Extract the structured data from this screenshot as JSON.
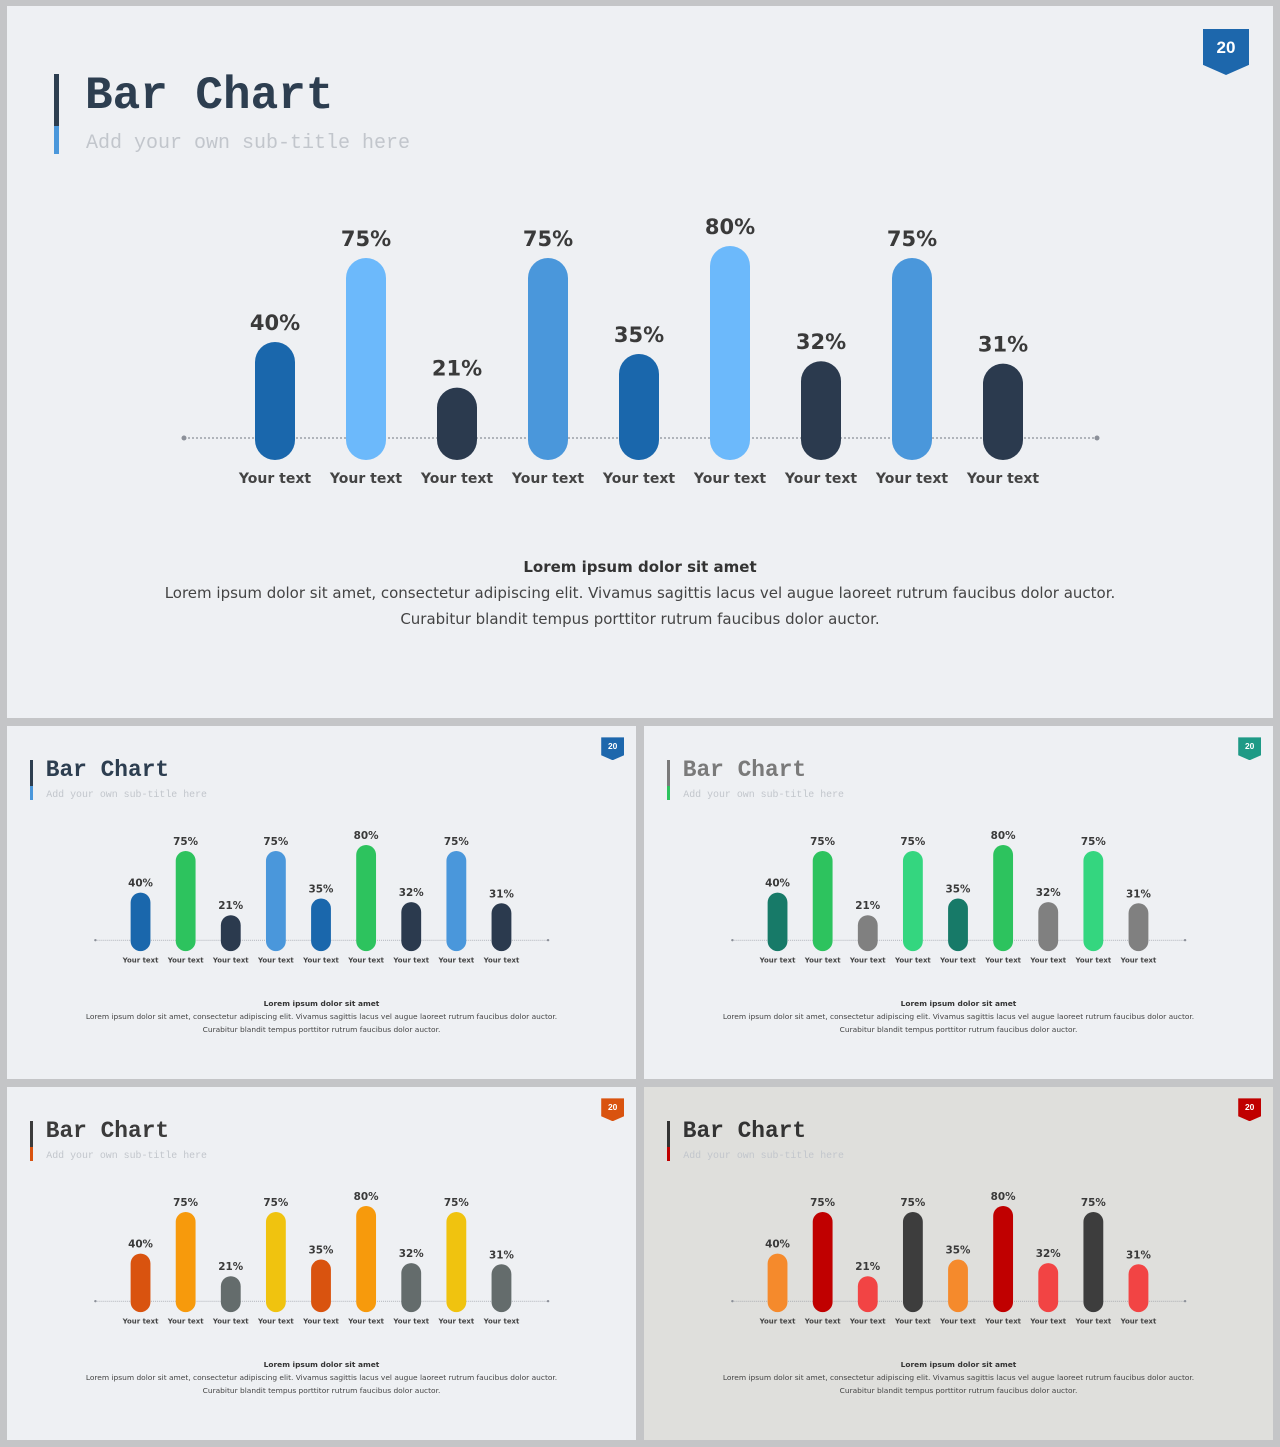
{
  "slides": [
    {
      "title": "Bar Chart",
      "subtitle": "Add your own sub-title here",
      "page_number": "20",
      "caption_heading": "Lorem ipsum dolor sit amet",
      "caption_line1": "Lorem ipsum dolor sit amet, consectetur adipiscing elit. Vivamus sagittis lacus vel augue laoreet rutrum faucibus dolor auctor.",
      "caption_line2": "Curabitur blandit tempus porttitor rutrum faucibus dolor auctor.",
      "colors": {
        "background": "#eef0f3",
        "title": "#2d3e50",
        "accent_top": "#2d3e50",
        "accent_bottom": "#4a97db",
        "badge": "#1d67ac",
        "bars": [
          "#1a67ac",
          "#6cb9fb",
          "#2b3a4e",
          "#4a97db",
          "#1a67ac",
          "#6cb9fb",
          "#2b3a4e",
          "#4a97db",
          "#2b3a4e"
        ]
      }
    },
    {
      "title": "Bar Chart",
      "subtitle": "Add your own sub-title here",
      "page_number": "20",
      "caption_heading": "Lorem ipsum dolor sit amet",
      "caption_line1": "Lorem ipsum dolor sit amet, consectetur adipiscing elit. Vivamus sagittis lacus vel augue laoreet rutrum faucibus dolor auctor.",
      "caption_line2": "Curabitur blandit tempus porttitor rutrum faucibus dolor auctor.",
      "colors": {
        "background": "#eef0f3",
        "title": "#2d3e50",
        "accent_top": "#2d3e50",
        "accent_bottom": "#4a97db",
        "badge": "#1d67ac",
        "bars": [
          "#1a67ac",
          "#2dc35e",
          "#2b3a4e",
          "#4a97db",
          "#1a67ac",
          "#2dc35e",
          "#2b3a4e",
          "#4a97db",
          "#2b3a4e"
        ]
      }
    },
    {
      "title": "Bar Chart",
      "subtitle": "Add your own sub-title here",
      "page_number": "20",
      "caption_heading": "Lorem ipsum dolor sit amet",
      "caption_line1": "Lorem ipsum dolor sit amet, consectetur adipiscing elit. Vivamus sagittis lacus vel augue laoreet rutrum faucibus dolor auctor.",
      "caption_line2": "Curabitur blandit tempus porttitor rutrum faucibus dolor auctor.",
      "colors": {
        "background": "#eef0f3",
        "title": "#7a7a7a",
        "accent_top": "#7a7a7a",
        "accent_bottom": "#2dc35e",
        "badge": "#1e9a86",
        "bars": [
          "#177a68",
          "#2dc35e",
          "#808080",
          "#34d67f",
          "#177a68",
          "#2dc35e",
          "#808080",
          "#34d67f",
          "#808080"
        ]
      }
    },
    {
      "title": "Bar Chart",
      "subtitle": "Add your own sub-title here",
      "page_number": "20",
      "caption_heading": "Lorem ipsum dolor sit amet",
      "caption_line1": "Lorem ipsum dolor sit amet, consectetur adipiscing elit. Vivamus sagittis lacus vel augue laoreet rutrum faucibus dolor auctor.",
      "caption_line2": "Curabitur blandit tempus porttitor rutrum faucibus dolor auctor.",
      "colors": {
        "background": "#eef0f3",
        "title": "#3b3b3b",
        "accent_top": "#3b3b3b",
        "accent_bottom": "#d9530f",
        "badge": "#d9530f",
        "bars": [
          "#d9530f",
          "#f79a0c",
          "#646c6c",
          "#f0c30f",
          "#d9530f",
          "#f79a0c",
          "#646c6c",
          "#f0c30f",
          "#646c6c"
        ]
      }
    },
    {
      "title": "Bar Chart",
      "subtitle": "Add your own sub-title here",
      "page_number": "20",
      "caption_heading": "Lorem ipsum dolor sit amet",
      "caption_line1": "Lorem ipsum dolor sit amet, consectetur adipiscing elit. Vivamus sagittis lacus vel augue laoreet rutrum faucibus dolor auctor.",
      "caption_line2": "Curabitur blandit tempus porttitor rutrum faucibus dolor auctor.",
      "colors": {
        "background": "#dfdfdc",
        "title": "#333333",
        "accent_top": "#333333",
        "accent_bottom": "#c00000",
        "badge": "#c00000",
        "bars": [
          "#f58a2c",
          "#c00000",
          "#f24444",
          "#3d3d3d",
          "#f58a2c",
          "#c00000",
          "#f24444",
          "#3d3d3d",
          "#f24444"
        ]
      }
    }
  ],
  "chart_data": [
    {
      "type": "bar",
      "categories": [
        "Your text",
        "Your text",
        "Your text",
        "Your text",
        "Your text",
        "Your text",
        "Your text",
        "Your text",
        "Your text"
      ],
      "values": [
        40,
        75,
        21,
        75,
        35,
        80,
        32,
        75,
        31
      ],
      "value_labels": [
        "40%",
        "75%",
        "21%",
        "75%",
        "35%",
        "80%",
        "32%",
        "75%",
        "31%"
      ],
      "title": "Bar Chart",
      "subtitle": "Add your own sub-title here",
      "ylim": [
        0,
        100
      ],
      "grid": false,
      "legend": "none"
    },
    {
      "type": "bar",
      "categories": [
        "Your text",
        "Your text",
        "Your text",
        "Your text",
        "Your text",
        "Your text",
        "Your text",
        "Your text",
        "Your text"
      ],
      "values": [
        40,
        75,
        21,
        75,
        35,
        80,
        32,
        75,
        31
      ],
      "value_labels": [
        "40%",
        "75%",
        "21%",
        "75%",
        "35%",
        "80%",
        "32%",
        "75%",
        "31%"
      ],
      "title": "Bar Chart",
      "subtitle": "Add your own sub-title here",
      "ylim": [
        0,
        100
      ],
      "grid": false,
      "legend": "none"
    },
    {
      "type": "bar",
      "categories": [
        "Your text",
        "Your text",
        "Your text",
        "Your text",
        "Your text",
        "Your text",
        "Your text",
        "Your text",
        "Your text"
      ],
      "values": [
        40,
        75,
        21,
        75,
        35,
        80,
        32,
        75,
        31
      ],
      "value_labels": [
        "40%",
        "75%",
        "21%",
        "75%",
        "35%",
        "80%",
        "32%",
        "75%",
        "31%"
      ],
      "title": "Bar Chart",
      "subtitle": "Add your own sub-title here",
      "ylim": [
        0,
        100
      ],
      "grid": false,
      "legend": "none"
    },
    {
      "type": "bar",
      "categories": [
        "Your text",
        "Your text",
        "Your text",
        "Your text",
        "Your text",
        "Your text",
        "Your text",
        "Your text",
        "Your text"
      ],
      "values": [
        40,
        75,
        21,
        75,
        35,
        80,
        32,
        75,
        31
      ],
      "value_labels": [
        "40%",
        "75%",
        "21%",
        "75%",
        "35%",
        "80%",
        "32%",
        "75%",
        "31%"
      ],
      "title": "Bar Chart",
      "subtitle": "Add your own sub-title here",
      "ylim": [
        0,
        100
      ],
      "grid": false,
      "legend": "none"
    },
    {
      "type": "bar",
      "categories": [
        "Your text",
        "Your text",
        "Your text",
        "Your text",
        "Your text",
        "Your text",
        "Your text",
        "Your text",
        "Your text"
      ],
      "values": [
        40,
        75,
        21,
        75,
        35,
        80,
        32,
        75,
        31
      ],
      "value_labels": [
        "40%",
        "75%",
        "21%",
        "75%",
        "35%",
        "80%",
        "32%",
        "75%",
        "31%"
      ],
      "title": "Bar Chart",
      "subtitle": "Add your own sub-title here",
      "ylim": [
        0,
        100
      ],
      "grid": false,
      "legend": "none"
    }
  ]
}
